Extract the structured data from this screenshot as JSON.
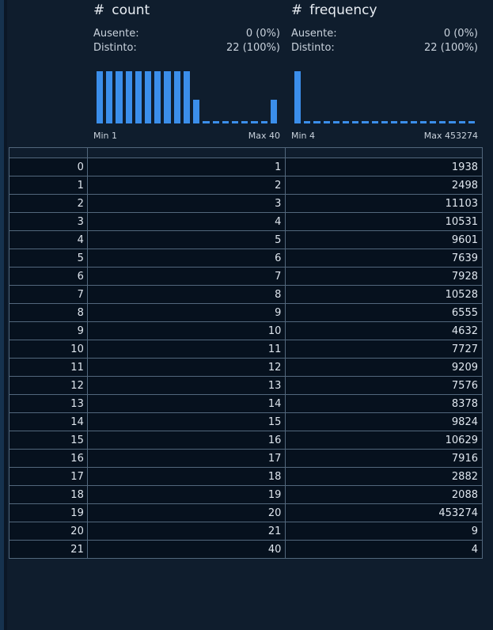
{
  "columns": [
    {
      "type_symbol": "#",
      "name": "count",
      "missing_label": "Ausente:",
      "missing_value": "0 (0%)",
      "distinct_label": "Distinto:",
      "distinct_value": "22 (100%)",
      "min_label": "Min 1",
      "max_label": "Max 40",
      "histogram": [
        1,
        1,
        1,
        1,
        1,
        1,
        1,
        1,
        1,
        1,
        0.45,
        0.04,
        0.04,
        0.04,
        0.04,
        0.04,
        0.04,
        0.04,
        0.45
      ]
    },
    {
      "type_symbol": "#",
      "name": "frequency",
      "missing_label": "Ausente:",
      "missing_value": "0 (0%)",
      "distinct_label": "Distinto:",
      "distinct_value": "22 (100%)",
      "min_label": "Min 4",
      "max_label": "Max 453274",
      "histogram": [
        1,
        0.04,
        0.04,
        0.04,
        0.04,
        0.04,
        0.04,
        0.04,
        0.04,
        0.04,
        0.04,
        0.04,
        0.04,
        0.04,
        0.04,
        0.04,
        0.04,
        0.04,
        0.04
      ]
    }
  ],
  "colors": {
    "bar": "#3b8eea",
    "background": "#0f1d2d",
    "cell": "#06111e",
    "border": "#52677c"
  },
  "rows": [
    {
      "index": "0",
      "count": "1",
      "frequency": "1938"
    },
    {
      "index": "1",
      "count": "2",
      "frequency": "2498"
    },
    {
      "index": "2",
      "count": "3",
      "frequency": "11103"
    },
    {
      "index": "3",
      "count": "4",
      "frequency": "10531"
    },
    {
      "index": "4",
      "count": "5",
      "frequency": "9601"
    },
    {
      "index": "5",
      "count": "6",
      "frequency": "7639"
    },
    {
      "index": "6",
      "count": "7",
      "frequency": "7928"
    },
    {
      "index": "7",
      "count": "8",
      "frequency": "10528"
    },
    {
      "index": "8",
      "count": "9",
      "frequency": "6555"
    },
    {
      "index": "9",
      "count": "10",
      "frequency": "4632"
    },
    {
      "index": "10",
      "count": "11",
      "frequency": "7727"
    },
    {
      "index": "11",
      "count": "12",
      "frequency": "9209"
    },
    {
      "index": "12",
      "count": "13",
      "frequency": "7576"
    },
    {
      "index": "13",
      "count": "14",
      "frequency": "8378"
    },
    {
      "index": "14",
      "count": "15",
      "frequency": "9824"
    },
    {
      "index": "15",
      "count": "16",
      "frequency": "10629"
    },
    {
      "index": "16",
      "count": "17",
      "frequency": "7916"
    },
    {
      "index": "17",
      "count": "18",
      "frequency": "2882"
    },
    {
      "index": "18",
      "count": "19",
      "frequency": "2088"
    },
    {
      "index": "19",
      "count": "20",
      "frequency": "453274"
    },
    {
      "index": "20",
      "count": "21",
      "frequency": "9"
    },
    {
      "index": "21",
      "count": "40",
      "frequency": "4"
    }
  ]
}
